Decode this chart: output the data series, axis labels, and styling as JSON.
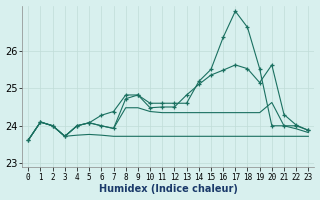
{
  "xlabel": "Humidex (Indice chaleur)",
  "background_color": "#d8f0ee",
  "grid_color": "#c0ddd8",
  "line_color": "#1a7060",
  "xlim": [
    0,
    23
  ],
  "ylim": [
    22.9,
    27.2
  ],
  "yticks": [
    23,
    24,
    25,
    26
  ],
  "xticks": [
    0,
    1,
    2,
    3,
    4,
    5,
    6,
    7,
    8,
    9,
    10,
    11,
    12,
    13,
    14,
    15,
    16,
    17,
    18,
    19,
    20,
    21,
    22,
    23
  ],
  "series": {
    "lineA": [
      23.62,
      24.1,
      24.0,
      23.72,
      24.0,
      24.08,
      24.0,
      23.93,
      24.72,
      24.82,
      24.48,
      24.5,
      24.5,
      24.82,
      25.1,
      25.35,
      25.48,
      25.62,
      25.52,
      25.15,
      25.62,
      24.3,
      24.02,
      23.88
    ],
    "lineB": [
      23.62,
      24.1,
      24.0,
      23.72,
      24.0,
      24.08,
      24.28,
      24.38,
      24.82,
      24.82,
      24.6,
      24.6,
      24.6,
      24.6,
      25.18,
      25.5,
      26.35,
      27.05,
      26.62,
      25.52,
      24.0,
      24.0,
      24.0,
      23.88
    ],
    "lineC": [
      23.62,
      24.1,
      24.0,
      23.72,
      24.0,
      24.08,
      24.0,
      23.93,
      24.48,
      24.48,
      24.38,
      24.35,
      24.35,
      24.35,
      24.35,
      24.35,
      24.35,
      24.35,
      24.35,
      24.35,
      24.62,
      24.0,
      23.92,
      23.82
    ],
    "lineD": [
      23.62,
      24.1,
      24.0,
      23.72,
      23.75,
      23.77,
      23.75,
      23.72,
      23.72,
      23.72,
      23.72,
      23.72,
      23.72,
      23.72,
      23.72,
      23.72,
      23.72,
      23.72,
      23.72,
      23.72,
      23.72,
      23.72,
      23.72,
      23.72
    ]
  },
  "markers": {
    "lineA": true,
    "lineB": true,
    "lineC": false,
    "lineD": false
  }
}
